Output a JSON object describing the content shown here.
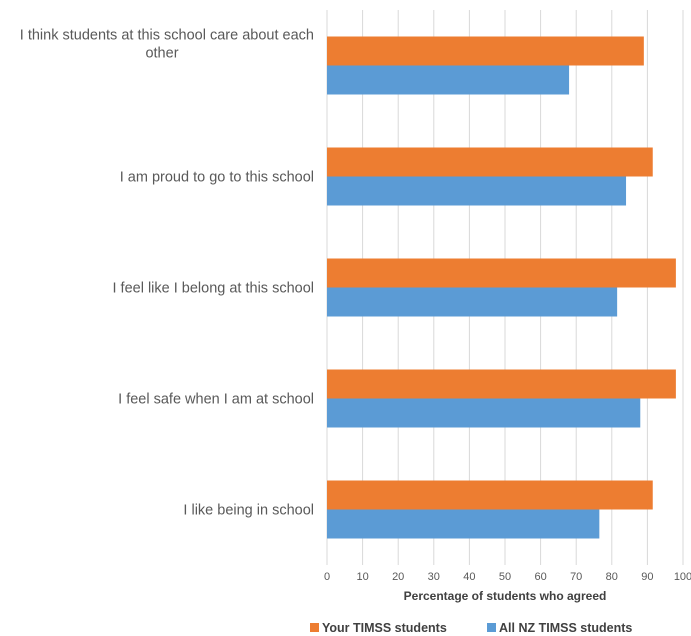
{
  "chart_data": {
    "type": "bar",
    "orientation": "horizontal",
    "categories": [
      [
        "I think students at this school care about each",
        "other"
      ],
      [
        "I am proud to go to this school"
      ],
      [
        "I feel like I belong at this school"
      ],
      [
        "I feel safe when I am at school"
      ],
      [
        "I like being in school"
      ]
    ],
    "series": [
      {
        "name": "Your TIMSS students",
        "color": "#ED7D31",
        "values": [
          89,
          91.5,
          98,
          98,
          91.5
        ]
      },
      {
        "name": "All NZ TIMSS students",
        "color": "#5B9BD5",
        "values": [
          68,
          84,
          81.5,
          88,
          76.5
        ]
      }
    ],
    "xlim": [
      0,
      100
    ],
    "xticks": [
      0,
      10,
      20,
      30,
      40,
      50,
      60,
      70,
      80,
      90,
      100
    ],
    "xlabel": "Percentage of students who agreed",
    "grid": true,
    "legend_position": "bottom"
  }
}
